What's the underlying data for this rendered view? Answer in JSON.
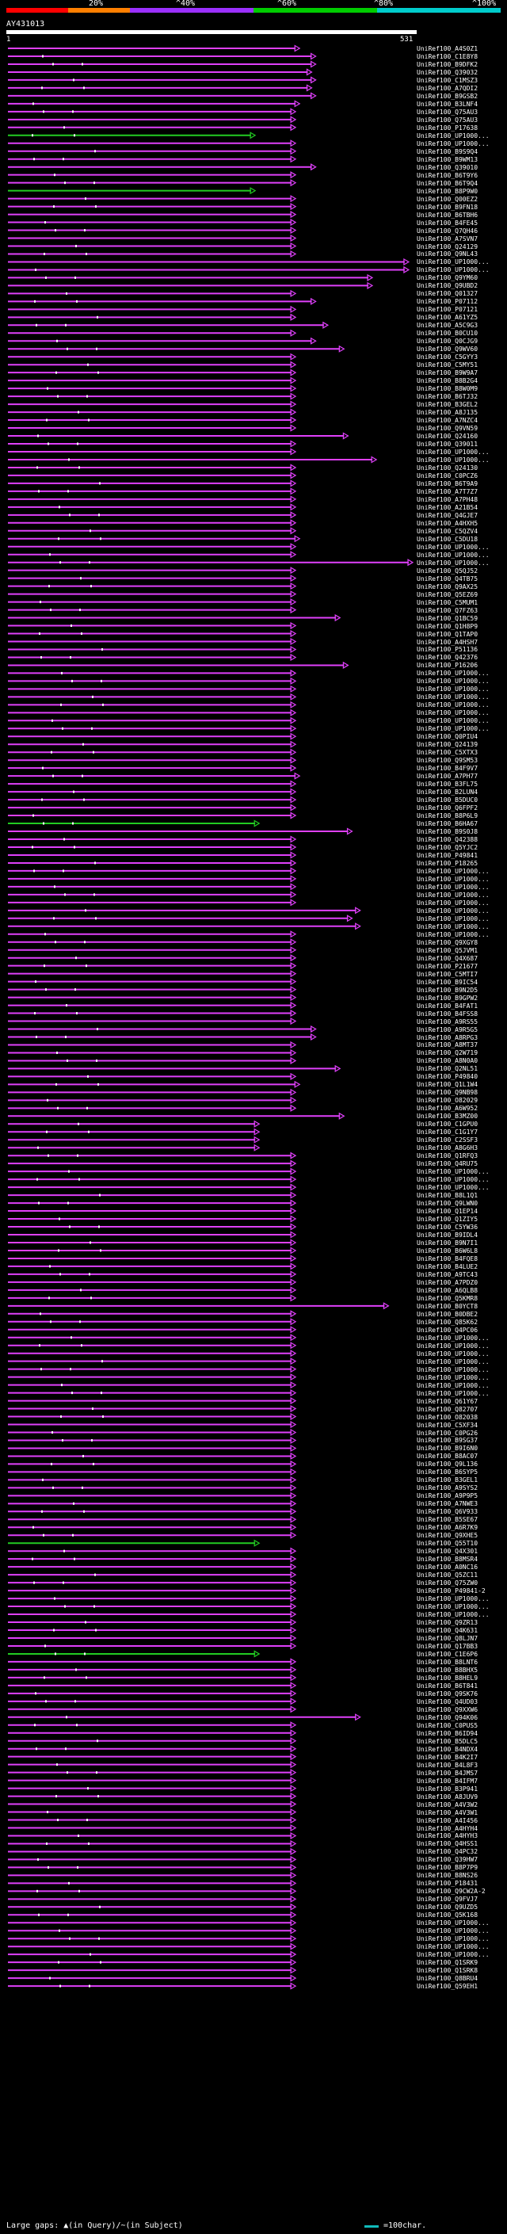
{
  "legend": {
    "colors": [
      "#ff0000",
      "#ff7f00",
      "#9b30ff",
      "#9b30ff",
      "#00cc00",
      "#00cc00",
      "#00cccc",
      "#00cccc"
    ],
    "percent_labels": [
      "20%",
      "^40%",
      "^60%",
      "^80%",
      "^100%"
    ]
  },
  "query": {
    "title": "AY431013",
    "ruler_start": "1",
    "ruler_end": "531"
  },
  "colors": {
    "hit": "#e040fb",
    "hit_green": "#22cc22",
    "marker": "#ffffff"
  },
  "hits": [
    {
      "id": "UniRef100_A4S0Z1",
      "end": 0.72
    },
    {
      "id": "UniRef100_C1E8Y8",
      "end": 0.76
    },
    {
      "id": "UniRef100_B9DFK2",
      "end": 0.76
    },
    {
      "id": "UniRef100_Q39032",
      "end": 0.75
    },
    {
      "id": "UniRef100_C1MSZ3",
      "end": 0.76
    },
    {
      "id": "UniRef100_A7QDI2",
      "end": 0.75
    },
    {
      "id": "UniRef100_B9GSB2",
      "end": 0.76
    },
    {
      "id": "UniRef100_B3LNF4",
      "end": 0.72
    },
    {
      "id": "UniRef100_Q75AU3",
      "end": 0.71
    },
    {
      "id": "UniRef100_Q75AU3",
      "end": 0.71
    },
    {
      "id": "UniRef100_P17638",
      "end": 0.71
    },
    {
      "id": "UniRef100_UP1000...",
      "end": 0.61,
      "green": true
    },
    {
      "id": "UniRef100_UP1000...",
      "end": 0.71
    },
    {
      "id": "UniRef100_B9S9Q4",
      "end": 0.71
    },
    {
      "id": "UniRef100_B9WM13",
      "end": 0.71
    },
    {
      "id": "UniRef100_Q39010",
      "end": 0.76
    },
    {
      "id": "UniRef100_B6T9Y6",
      "end": 0.71
    },
    {
      "id": "UniRef100_B6T9Q4",
      "end": 0.71
    },
    {
      "id": "UniRef100_B8P9W0",
      "end": 0.61,
      "green": true
    },
    {
      "id": "UniRef100_Q00EZ2",
      "end": 0.71
    },
    {
      "id": "UniRef100_B9FN18",
      "end": 0.71
    },
    {
      "id": "UniRef100_B6TBH6",
      "end": 0.71
    },
    {
      "id": "UniRef100_B4FE45",
      "end": 0.71
    },
    {
      "id": "UniRef100_Q7QH46",
      "end": 0.71
    },
    {
      "id": "UniRef100_A7SVN7",
      "end": 0.71
    },
    {
      "id": "UniRef100_Q24129",
      "end": 0.71
    },
    {
      "id": "UniRef100_Q9NL43",
      "end": 0.71
    },
    {
      "id": "UniRef100_UP1000...",
      "end": 0.99
    },
    {
      "id": "UniRef100_UP1000...",
      "end": 0.99
    },
    {
      "id": "UniRef100_Q9YM60",
      "end": 0.9
    },
    {
      "id": "UniRef100_Q9UBD2",
      "end": 0.9
    },
    {
      "id": "UniRef100_Q01327",
      "end": 0.71
    },
    {
      "id": "UniRef100_P07112",
      "end": 0.76
    },
    {
      "id": "UniRef100_P07121",
      "end": 0.71
    },
    {
      "id": "UniRef100_A61YZ5",
      "end": 0.71
    },
    {
      "id": "UniRef100_A5C9G3",
      "end": 0.79
    },
    {
      "id": "UniRef100_B0CU10",
      "end": 0.71
    },
    {
      "id": "UniRef100_Q0CJG9",
      "end": 0.76
    },
    {
      "id": "UniRef100_Q9WV60",
      "end": 0.83
    },
    {
      "id": "UniRef100_C5GYY3",
      "end": 0.71
    },
    {
      "id": "UniRef100_C5MY51",
      "end": 0.71
    },
    {
      "id": "UniRef100_B9W9A7",
      "end": 0.71
    },
    {
      "id": "UniRef100_B8B2G4",
      "end": 0.71
    },
    {
      "id": "UniRef100_B8W0M9",
      "end": 0.71
    },
    {
      "id": "UniRef100_B6TJ32",
      "end": 0.71
    },
    {
      "id": "UniRef100_B3GEL2",
      "end": 0.71
    },
    {
      "id": "UniRef100_A8J135",
      "end": 0.71
    },
    {
      "id": "UniRef100_A7NZC4",
      "end": 0.71
    },
    {
      "id": "UniRef100_Q9VN59",
      "end": 0.71
    },
    {
      "id": "UniRef100_Q24160",
      "end": 0.84
    },
    {
      "id": "UniRef100_Q39011",
      "end": 0.71
    },
    {
      "id": "UniRef100_UP1000...",
      "end": 0.71
    },
    {
      "id": "UniRef100_UP1000...",
      "end": 0.91
    },
    {
      "id": "UniRef100_Q24130",
      "end": 0.71
    },
    {
      "id": "UniRef100_C0PCZ6",
      "end": 0.71
    },
    {
      "id": "UniRef100_B6T9A9",
      "end": 0.71
    },
    {
      "id": "UniRef100_A7T7Z7",
      "end": 0.71
    },
    {
      "id": "UniRef100_A7PH48",
      "end": 0.71
    },
    {
      "id": "UniRef100_A21B54",
      "end": 0.71
    },
    {
      "id": "UniRef100_Q4GJE7",
      "end": 0.71
    },
    {
      "id": "UniRef100_A4HXH5",
      "end": 0.71
    },
    {
      "id": "UniRef100_C5QZV4",
      "end": 0.71
    },
    {
      "id": "UniRef100_C5DU18",
      "end": 0.72
    },
    {
      "id": "UniRef100_UP1000...",
      "end": 0.71
    },
    {
      "id": "UniRef100_UP1000...",
      "end": 0.71
    },
    {
      "id": "UniRef100_UP1000...",
      "end": 1.0
    },
    {
      "id": "UniRef100_Q5QJ52",
      "end": 0.71
    },
    {
      "id": "UniRef100_Q4TB75",
      "end": 0.71
    },
    {
      "id": "UniRef100_Q9AX25",
      "end": 0.71
    },
    {
      "id": "UniRef100_Q5EZ69",
      "end": 0.71
    },
    {
      "id": "UniRef100_C5MUM1",
      "end": 0.71
    },
    {
      "id": "UniRef100_Q7FZ63",
      "end": 0.71
    },
    {
      "id": "UniRef100_Q1BC59",
      "end": 0.82
    },
    {
      "id": "UniRef100_Q1H8P9",
      "end": 0.71
    },
    {
      "id": "UniRef100_Q1TAP0",
      "end": 0.71
    },
    {
      "id": "UniRef100_A4HSH7",
      "end": 0.71
    },
    {
      "id": "UniRef100_P51136",
      "end": 0.71
    },
    {
      "id": "UniRef100_Q42376",
      "end": 0.71
    },
    {
      "id": "UniRef100_P16206",
      "end": 0.84
    },
    {
      "id": "UniRef100_UP1000...",
      "end": 0.71
    },
    {
      "id": "UniRef100_UP1000...",
      "end": 0.71
    },
    {
      "id": "UniRef100_UP1000...",
      "end": 0.71
    },
    {
      "id": "UniRef100_UP1000...",
      "end": 0.71
    },
    {
      "id": "UniRef100_UP1000...",
      "end": 0.71
    },
    {
      "id": "UniRef100_UP1000...",
      "end": 0.71
    },
    {
      "id": "UniRef100_UP1000...",
      "end": 0.71
    },
    {
      "id": "UniRef100_UP1000...",
      "end": 0.71
    },
    {
      "id": "UniRef100_Q0PIU4",
      "end": 0.71
    },
    {
      "id": "UniRef100_Q24139",
      "end": 0.71
    },
    {
      "id": "UniRef100_C5XTX3",
      "end": 0.71
    },
    {
      "id": "UniRef100_Q9SM53",
      "end": 0.71
    },
    {
      "id": "UniRef100_B4F9V7",
      "end": 0.71
    },
    {
      "id": "UniRef100_A7PH77",
      "end": 0.72
    },
    {
      "id": "UniRef100_B3FL75",
      "end": 0.71
    },
    {
      "id": "UniRef100_B2LUN4",
      "end": 0.71
    },
    {
      "id": "UniRef100_B5DUC0",
      "end": 0.71
    },
    {
      "id": "UniRef100_Q6FPF2",
      "end": 0.71
    },
    {
      "id": "UniRef100_B8P6L9",
      "end": 0.71
    },
    {
      "id": "UniRef100_B6HA67",
      "end": 0.62,
      "green": true
    },
    {
      "id": "UniRef100_B9S0J8",
      "end": 0.85
    },
    {
      "id": "UniRef100_Q42388",
      "end": 0.71
    },
    {
      "id": "UniRef100_Q5YJC2",
      "end": 0.71
    },
    {
      "id": "UniRef100_P49841",
      "end": 0.71
    },
    {
      "id": "UniRef100_P18265",
      "end": 0.71
    },
    {
      "id": "UniRef100_UP1000...",
      "end": 0.71
    },
    {
      "id": "UniRef100_UP1000...",
      "end": 0.71
    },
    {
      "id": "UniRef100_UP1000...",
      "end": 0.71
    },
    {
      "id": "UniRef100_UP1000...",
      "end": 0.71
    },
    {
      "id": "UniRef100_UP1000...",
      "end": 0.71
    },
    {
      "id": "UniRef100_UP1000...",
      "end": 0.87
    },
    {
      "id": "UniRef100_UP1000...",
      "end": 0.85
    },
    {
      "id": "UniRef100_UP1000...",
      "end": 0.87
    },
    {
      "id": "UniRef100_UP1000...",
      "end": 0.71
    },
    {
      "id": "UniRef100_Q9XGY8",
      "end": 0.71
    },
    {
      "id": "UniRef100_Q5JVM1",
      "end": 0.71
    },
    {
      "id": "UniRef100_Q4X687",
      "end": 0.71
    },
    {
      "id": "UniRef100_P21677",
      "end": 0.71
    },
    {
      "id": "UniRef100_C5MTI7",
      "end": 0.71
    },
    {
      "id": "UniRef100_B9IC54",
      "end": 0.71
    },
    {
      "id": "UniRef100_B9N2D5",
      "end": 0.71
    },
    {
      "id": "UniRef100_B9GPW2",
      "end": 0.71
    },
    {
      "id": "UniRef100_B4FAT1",
      "end": 0.71
    },
    {
      "id": "UniRef100_B4FSS8",
      "end": 0.71
    },
    {
      "id": "UniRef100_A9RS55",
      "end": 0.71
    },
    {
      "id": "UniRef100_A9R5G5",
      "end": 0.76
    },
    {
      "id": "UniRef100_A8RPG3",
      "end": 0.76
    },
    {
      "id": "UniRef100_A8MT37",
      "end": 0.71
    },
    {
      "id": "UniRef100_Q2W719",
      "end": 0.71
    },
    {
      "id": "UniRef100_A8N0A0",
      "end": 0.71
    },
    {
      "id": "UniRef100_Q2NL51",
      "end": 0.82
    },
    {
      "id": "UniRef100_P49840",
      "end": 0.71
    },
    {
      "id": "UniRef100_Q1L1W4",
      "end": 0.72
    },
    {
      "id": "UniRef100_Q9NB98",
      "end": 0.71
    },
    {
      "id": "UniRef100_O82029",
      "end": 0.71
    },
    {
      "id": "UniRef100_A6W952",
      "end": 0.71
    },
    {
      "id": "UniRef100_B3MZ00",
      "end": 0.83
    },
    {
      "id": "UniRef100_C1GPU0",
      "end": 0.62
    },
    {
      "id": "UniRef100_C1G1Y7",
      "end": 0.62
    },
    {
      "id": "UniRef100_C2SSF3",
      "end": 0.62
    },
    {
      "id": "UniRef100_A8G6H3",
      "end": 0.62
    },
    {
      "id": "UniRef100_Q1RFQ3",
      "end": 0.71
    },
    {
      "id": "UniRef100_Q4RU75",
      "end": 0.71
    },
    {
      "id": "UniRef100_UP1000...",
      "end": 0.71
    },
    {
      "id": "UniRef100_UP1000...",
      "end": 0.71
    },
    {
      "id": "UniRef100_UP1000...",
      "end": 0.71
    },
    {
      "id": "UniRef100_B8L1Q1",
      "end": 0.71
    },
    {
      "id": "UniRef100_Q9LWN0",
      "end": 0.71
    },
    {
      "id": "UniRef100_Q1EP14",
      "end": 0.71
    },
    {
      "id": "UniRef100_Q1ZIY5",
      "end": 0.71
    },
    {
      "id": "UniRef100_C5YW36",
      "end": 0.71
    },
    {
      "id": "UniRef100_B9IDL4",
      "end": 0.71
    },
    {
      "id": "UniRef100_B9N7I1",
      "end": 0.71
    },
    {
      "id": "UniRef100_B6W6L8",
      "end": 0.71
    },
    {
      "id": "UniRef100_B4FQE8",
      "end": 0.71
    },
    {
      "id": "UniRef100_B4LUE2",
      "end": 0.71
    },
    {
      "id": "UniRef100_A9TC43",
      "end": 0.71
    },
    {
      "id": "UniRef100_A7PDZ0",
      "end": 0.71
    },
    {
      "id": "UniRef100_A6QLB8",
      "end": 0.71
    },
    {
      "id": "UniRef100_Q5KMR8",
      "end": 0.71
    },
    {
      "id": "UniRef100_B0YCT8",
      "end": 0.94
    },
    {
      "id": "UniRef100_B0DBE2",
      "end": 0.71
    },
    {
      "id": "UniRef100_Q85K62",
      "end": 0.71
    },
    {
      "id": "UniRef100_Q4PC06",
      "end": 0.71
    },
    {
      "id": "UniRef100_UP1000...",
      "end": 0.71
    },
    {
      "id": "UniRef100_UP1000...",
      "end": 0.71
    },
    {
      "id": "UniRef100_UP1000...",
      "end": 0.71
    },
    {
      "id": "UniRef100_UP1000...",
      "end": 0.71
    },
    {
      "id": "UniRef100_UP1000...",
      "end": 0.71
    },
    {
      "id": "UniRef100_UP1000...",
      "end": 0.71
    },
    {
      "id": "UniRef100_UP1000...",
      "end": 0.71
    },
    {
      "id": "UniRef100_UP1000...",
      "end": 0.71
    },
    {
      "id": "UniRef100_Q61Y67",
      "end": 0.71
    },
    {
      "id": "UniRef100_Q82707",
      "end": 0.71
    },
    {
      "id": "UniRef100_O82038",
      "end": 0.71
    },
    {
      "id": "UniRef100_C5XF34",
      "end": 0.71
    },
    {
      "id": "UniRef100_C0PG26",
      "end": 0.71
    },
    {
      "id": "UniRef100_B9SG37",
      "end": 0.71
    },
    {
      "id": "UniRef100_B9I6N0",
      "end": 0.71
    },
    {
      "id": "UniRef100_B8AC07",
      "end": 0.71
    },
    {
      "id": "UniRef100_Q9L136",
      "end": 0.71
    },
    {
      "id": "UniRef100_B6SYP5",
      "end": 0.71
    },
    {
      "id": "UniRef100_B3GEL1",
      "end": 0.71
    },
    {
      "id": "UniRef100_A9SYS2",
      "end": 0.71
    },
    {
      "id": "UniRef100_A9P9P5",
      "end": 0.71
    },
    {
      "id": "UniRef100_A7NWE3",
      "end": 0.71
    },
    {
      "id": "UniRef100_Q6V933",
      "end": 0.71
    },
    {
      "id": "UniRef100_B5SE67",
      "end": 0.71
    },
    {
      "id": "UniRef100_A6R7K9",
      "end": 0.71
    },
    {
      "id": "UniRef100_Q9XHE5",
      "end": 0.71
    },
    {
      "id": "UniRef100_Q55T10",
      "end": 0.62,
      "green": true
    },
    {
      "id": "UniRef100_Q4X301",
      "end": 0.71
    },
    {
      "id": "UniRef100_B8MSR4",
      "end": 0.71
    },
    {
      "id": "UniRef100_A0NC16",
      "end": 0.71
    },
    {
      "id": "UniRef100_Q5ZC11",
      "end": 0.71
    },
    {
      "id": "UniRef100_Q75ZW0",
      "end": 0.71
    },
    {
      "id": "UniRef100_P49841-2",
      "end": 0.71
    },
    {
      "id": "UniRef100_UP1000...",
      "end": 0.71
    },
    {
      "id": "UniRef100_UP1000...",
      "end": 0.71
    },
    {
      "id": "UniRef100_UP1000...",
      "end": 0.71
    },
    {
      "id": "UniRef100_Q9ZR13",
      "end": 0.71
    },
    {
      "id": "UniRef100_Q4K631",
      "end": 0.71
    },
    {
      "id": "UniRef100_Q8LJN7",
      "end": 0.71
    },
    {
      "id": "UniRef100_Q17BB3",
      "end": 0.71
    },
    {
      "id": "UniRef100_C1E6P6",
      "end": 0.62,
      "green": true
    },
    {
      "id": "UniRef100_B8LNT6",
      "end": 0.71
    },
    {
      "id": "UniRef100_B8BHX5",
      "end": 0.71
    },
    {
      "id": "UniRef100_B8HEL9",
      "end": 0.71
    },
    {
      "id": "UniRef100_B6T841",
      "end": 0.71
    },
    {
      "id": "UniRef100_Q9SK76",
      "end": 0.71
    },
    {
      "id": "UniRef100_Q4UD03",
      "end": 0.71
    },
    {
      "id": "UniRef100_Q9XXW6",
      "end": 0.71
    },
    {
      "id": "UniRef100_Q94K06",
      "end": 0.87
    },
    {
      "id": "UniRef100_C0PUS5",
      "end": 0.71
    },
    {
      "id": "UniRef100_B6ID94",
      "end": 0.71
    },
    {
      "id": "UniRef100_B5DLC5",
      "end": 0.71
    },
    {
      "id": "UniRef100_B4NDX4",
      "end": 0.71
    },
    {
      "id": "UniRef100_B4K2I7",
      "end": 0.71
    },
    {
      "id": "UniRef100_B4L8F3",
      "end": 0.71
    },
    {
      "id": "UniRef100_B4JMS7",
      "end": 0.71
    },
    {
      "id": "UniRef100_B4IFM7",
      "end": 0.71
    },
    {
      "id": "UniRef100_B3P941",
      "end": 0.71
    },
    {
      "id": "UniRef100_A8JUV9",
      "end": 0.71
    },
    {
      "id": "UniRef100_A4V3W2",
      "end": 0.71
    },
    {
      "id": "UniRef100_A4V3W1",
      "end": 0.71
    },
    {
      "id": "UniRef100_A4I456",
      "end": 0.71
    },
    {
      "id": "UniRef100_A4HYH4",
      "end": 0.71
    },
    {
      "id": "UniRef100_A4HYH3",
      "end": 0.71
    },
    {
      "id": "UniRef100_Q4HSS1",
      "end": 0.71
    },
    {
      "id": "UniRef100_Q4PC32",
      "end": 0.71
    },
    {
      "id": "UniRef100_Q39HW7",
      "end": 0.71
    },
    {
      "id": "UniRef100_B8P7P9",
      "end": 0.71
    },
    {
      "id": "UniRef100_B8NS26",
      "end": 0.71
    },
    {
      "id": "UniRef100_P18431",
      "end": 0.71
    },
    {
      "id": "UniRef100_Q9CW2A-2",
      "end": 0.71
    },
    {
      "id": "UniRef100_Q9FVJ7",
      "end": 0.71
    },
    {
      "id": "UniRef100_Q9UZD5",
      "end": 0.71
    },
    {
      "id": "UniRef100_Q5K168",
      "end": 0.71
    },
    {
      "id": "UniRef100_UP1000...",
      "end": 0.71
    },
    {
      "id": "UniRef100_UP1000...",
      "end": 0.71
    },
    {
      "id": "UniRef100_UP1000...",
      "end": 0.71
    },
    {
      "id": "UniRef100_UP1000...",
      "end": 0.71
    },
    {
      "id": "UniRef100_UP1000...",
      "end": 0.71
    },
    {
      "id": "UniRef100_Q1SRK9",
      "end": 0.71
    },
    {
      "id": "UniRef100_Q1SRK8",
      "end": 0.71
    },
    {
      "id": "UniRef100_Q8BRU4",
      "end": 0.71
    },
    {
      "id": "UniRef100_Q59EH1",
      "end": 0.71
    }
  ],
  "footer": {
    "text": "Large gaps: ▲(in Query)/~(in Subject)",
    "scale_label": "=100char."
  }
}
